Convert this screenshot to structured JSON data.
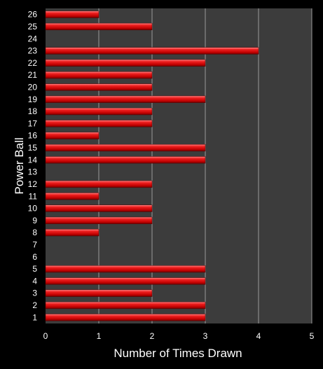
{
  "chart_data": {
    "type": "bar",
    "orientation": "horizontal",
    "categories": [
      "1",
      "2",
      "3",
      "4",
      "5",
      "6",
      "7",
      "8",
      "9",
      "10",
      "11",
      "12",
      "13",
      "14",
      "15",
      "16",
      "17",
      "18",
      "19",
      "20",
      "21",
      "22",
      "23",
      "24",
      "25",
      "26"
    ],
    "values": [
      3,
      3,
      2,
      3,
      3,
      0,
      0,
      1,
      2,
      2,
      1,
      2,
      0,
      3,
      3,
      1,
      2,
      2,
      3,
      2,
      2,
      3,
      4,
      0,
      2,
      1
    ],
    "xlabel": "Number of Times Drawn",
    "ylabel": "Power Ball",
    "xlim": [
      0,
      5
    ],
    "xticks": [
      0,
      1,
      2,
      3,
      4,
      5
    ],
    "grid": "vertical",
    "legend": "none",
    "colors": {
      "background": "#000000",
      "plot_area": "#3c3c3c",
      "gridline": "#9a9a9a",
      "bar": "#e01010",
      "text": "#ffffff"
    }
  }
}
